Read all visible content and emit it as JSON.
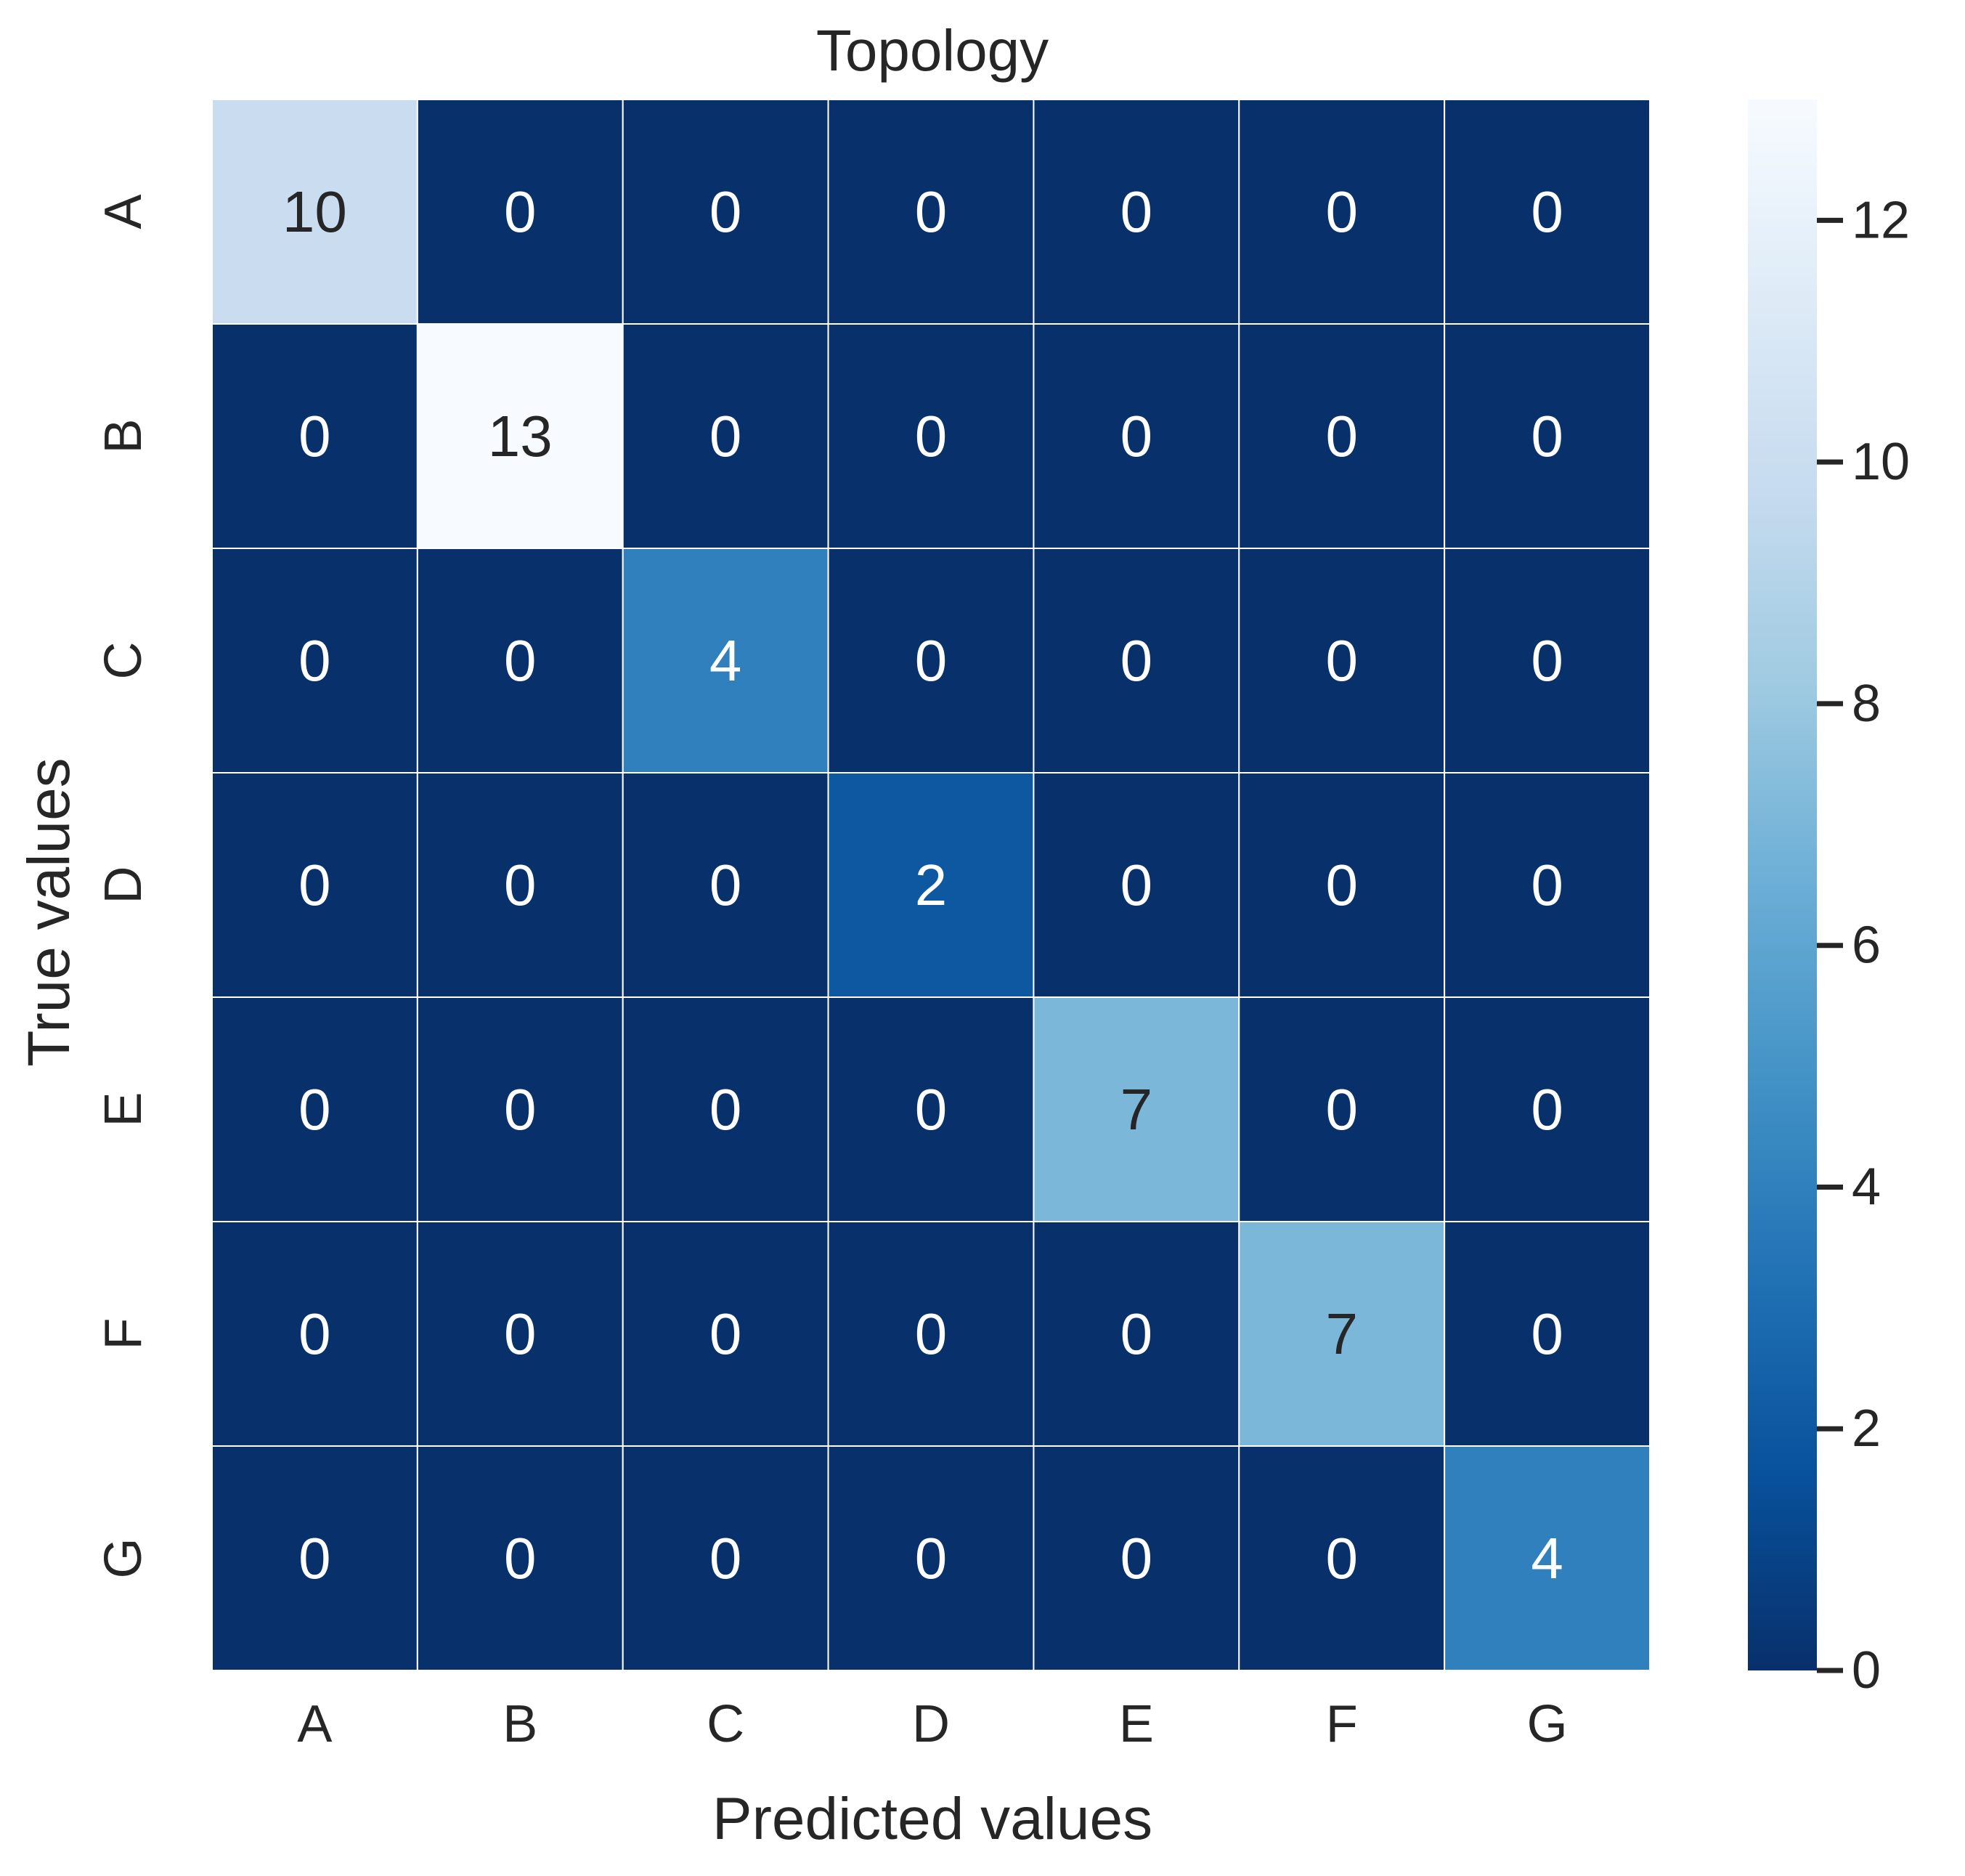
{
  "chart_data": {
    "type": "heatmap",
    "title": "Topology",
    "xlabel": "Predicted values",
    "ylabel": "True values",
    "x_categories": [
      "A",
      "B",
      "C",
      "D",
      "E",
      "F",
      "G"
    ],
    "y_categories": [
      "A",
      "B",
      "C",
      "D",
      "E",
      "F",
      "G"
    ],
    "values": [
      [
        10,
        0,
        0,
        0,
        0,
        0,
        0
      ],
      [
        0,
        13,
        0,
        0,
        0,
        0,
        0
      ],
      [
        0,
        0,
        4,
        0,
        0,
        0,
        0
      ],
      [
        0,
        0,
        0,
        2,
        0,
        0,
        0
      ],
      [
        0,
        0,
        0,
        0,
        7,
        0,
        0
      ],
      [
        0,
        0,
        0,
        0,
        0,
        7,
        0
      ],
      [
        0,
        0,
        0,
        0,
        0,
        0,
        4
      ]
    ],
    "colormap": "Blues_r",
    "colorbar": {
      "range": [
        0,
        13
      ],
      "ticks": [
        0,
        2,
        4,
        6,
        8,
        10,
        12
      ]
    },
    "annotations": true,
    "grid": false,
    "colors": {
      "cell_border": "#ffffff",
      "low": "#08306b",
      "high": "#f7fbff",
      "text_dark": "#262626",
      "text_light": "#ffffff"
    }
  }
}
